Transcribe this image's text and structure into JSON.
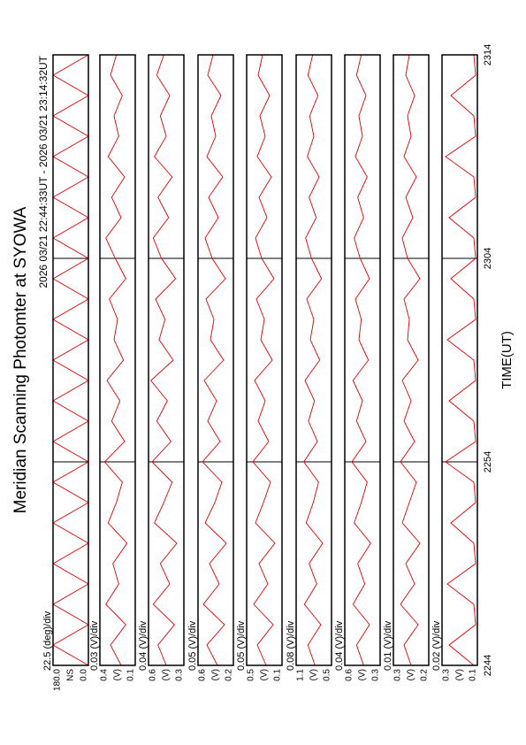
{
  "chart_data": [
    {
      "type": "line",
      "title": "Meridian Scanning Photomter at SYOWA",
      "subtitle": "2026 03/21 22:44:33UT - 2026 03/21 23:14:32UT",
      "annotation": "22.5 (deg)/div",
      "ylabel": "NS",
      "x": [
        0,
        1,
        2,
        3,
        4,
        5,
        6,
        7,
        8,
        9,
        10,
        11,
        12,
        13,
        14,
        15,
        16,
        17,
        18,
        19,
        20,
        21,
        22,
        23,
        24,
        25,
        26,
        27,
        28,
        29,
        30
      ],
      "xlim": [
        0,
        30
      ],
      "ylim": [
        0,
        180
      ],
      "yticks": [
        {
          "value": 0,
          "label": "0.0"
        },
        {
          "value": 180,
          "label": "180.0"
        }
      ],
      "series": [
        {
          "color": "#e00000",
          "values": [
            0,
            180,
            0,
            180,
            0,
            180,
            0,
            180,
            0,
            180,
            0,
            180,
            0,
            180,
            0,
            180,
            0,
            180,
            0,
            180,
            0,
            180,
            0,
            180,
            0,
            180,
            0,
            180,
            0,
            180,
            0
          ]
        }
      ]
    },
    {
      "type": "line",
      "annotation": "0.03 (V)/div",
      "ylabel": "(V)",
      "x": [
        0,
        1,
        2,
        3,
        4,
        5,
        6,
        7,
        8,
        9,
        10,
        11,
        12,
        13,
        14,
        15,
        16,
        17,
        18,
        19,
        20,
        21,
        22,
        23,
        24,
        25,
        26,
        27,
        28,
        29,
        30
      ],
      "xlim": [
        0,
        30
      ],
      "ylim": [
        0.1,
        0.4
      ],
      "yticks": [
        0.1,
        0.4
      ],
      "series": [
        {
          "color": "#e00000",
          "values": [
            0.22,
            0.31,
            0.18,
            0.35,
            0.24,
            0.29,
            0.17,
            0.33,
            0.26,
            0.21,
            0.36,
            0.19,
            0.3,
            0.23,
            0.34,
            0.2,
            0.28,
            0.25,
            0.32,
            0.18,
            0.27,
            0.35,
            0.22,
            0.3,
            0.19,
            0.33,
            0.24,
            0.28,
            0.21,
            0.31,
            0.26
          ]
        }
      ]
    },
    {
      "type": "line",
      "annotation": "0.04 (V)/div",
      "ylabel": "(V)",
      "x": [
        0,
        1,
        2,
        3,
        4,
        5,
        6,
        7,
        8,
        9,
        10,
        11,
        12,
        13,
        14,
        15,
        16,
        17,
        18,
        19,
        20,
        21,
        22,
        23,
        24,
        25,
        26,
        27,
        28,
        29,
        30
      ],
      "xlim": [
        0,
        30
      ],
      "ylim": [
        0.3,
        0.6
      ],
      "yticks": [
        0.3,
        0.6
      ],
      "series": [
        {
          "color": "#e00000",
          "values": [
            0.45,
            0.52,
            0.38,
            0.56,
            0.42,
            0.5,
            0.36,
            0.55,
            0.47,
            0.4,
            0.57,
            0.41,
            0.53,
            0.44,
            0.58,
            0.39,
            0.51,
            0.46,
            0.54,
            0.37,
            0.49,
            0.56,
            0.43,
            0.52,
            0.4,
            0.55,
            0.45,
            0.5,
            0.42,
            0.53,
            0.47
          ]
        }
      ]
    },
    {
      "type": "line",
      "annotation": "0.05 (V)/div",
      "ylabel": "(V)",
      "x": [
        0,
        1,
        2,
        3,
        4,
        5,
        6,
        7,
        8,
        9,
        10,
        11,
        12,
        13,
        14,
        15,
        16,
        17,
        18,
        19,
        20,
        21,
        22,
        23,
        24,
        25,
        26,
        27,
        28,
        29,
        30
      ],
      "xlim": [
        0,
        30
      ],
      "ylim": [
        0.2,
        0.6
      ],
      "yticks": [
        0.2,
        0.6
      ],
      "series": [
        {
          "color": "#e00000",
          "values": [
            0.38,
            0.5,
            0.3,
            0.54,
            0.36,
            0.47,
            0.28,
            0.52,
            0.41,
            0.33,
            0.55,
            0.35,
            0.49,
            0.39,
            0.53,
            0.31,
            0.46,
            0.42,
            0.51,
            0.29,
            0.44,
            0.52,
            0.37,
            0.48,
            0.32,
            0.5,
            0.4,
            0.45,
            0.34,
            0.49,
            0.43
          ]
        }
      ]
    },
    {
      "type": "line",
      "annotation": "0.05 (V)/div",
      "ylabel": "(V)",
      "x": [
        0,
        1,
        2,
        3,
        4,
        5,
        6,
        7,
        8,
        9,
        10,
        11,
        12,
        13,
        14,
        15,
        16,
        17,
        18,
        19,
        20,
        21,
        22,
        23,
        24,
        25,
        26,
        27,
        28,
        29,
        30
      ],
      "xlim": [
        0,
        30
      ],
      "ylim": [
        0.1,
        0.5
      ],
      "yticks": [
        0.1,
        0.5
      ],
      "series": [
        {
          "color": "#e00000",
          "values": [
            0.28,
            0.38,
            0.2,
            0.42,
            0.26,
            0.36,
            0.18,
            0.4,
            0.31,
            0.23,
            0.43,
            0.25,
            0.37,
            0.29,
            0.41,
            0.21,
            0.34,
            0.3,
            0.39,
            0.19,
            0.33,
            0.4,
            0.27,
            0.36,
            0.22,
            0.38,
            0.29,
            0.35,
            0.24,
            0.37,
            0.32
          ]
        }
      ]
    },
    {
      "type": "line",
      "annotation": "0.08 (V)/div",
      "ylabel": "(V)",
      "x": [
        0,
        1,
        2,
        3,
        4,
        5,
        6,
        7,
        8,
        9,
        10,
        11,
        12,
        13,
        14,
        15,
        16,
        17,
        18,
        19,
        20,
        21,
        22,
        23,
        24,
        25,
        26,
        27,
        28,
        29,
        30
      ],
      "xlim": [
        0,
        30
      ],
      "ylim": [
        0.5,
        1.1
      ],
      "yticks": [
        0.5,
        1.1
      ],
      "series": [
        {
          "color": "#e00000",
          "values": [
            0.78,
            0.9,
            0.68,
            0.96,
            0.75,
            0.88,
            0.65,
            0.93,
            0.81,
            0.72,
            0.97,
            0.74,
            0.89,
            0.79,
            0.95,
            0.7,
            0.86,
            0.8,
            0.92,
            0.67,
            0.84,
            0.94,
            0.76,
            0.88,
            0.71,
            0.91,
            0.8,
            0.87,
            0.73,
            0.9,
            0.82
          ]
        }
      ]
    },
    {
      "type": "line",
      "annotation": "0.04 (V)/div",
      "ylabel": "(V)",
      "x": [
        0,
        1,
        2,
        3,
        4,
        5,
        6,
        7,
        8,
        9,
        10,
        11,
        12,
        13,
        14,
        15,
        16,
        17,
        18,
        19,
        20,
        21,
        22,
        23,
        24,
        25,
        26,
        27,
        28,
        29,
        30
      ],
      "xlim": [
        0,
        30
      ],
      "ylim": [
        0.3,
        0.6
      ],
      "yticks": [
        0.3,
        0.6
      ],
      "series": [
        {
          "color": "#e00000",
          "values": [
            0.44,
            0.5,
            0.39,
            0.53,
            0.43,
            0.49,
            0.38,
            0.52,
            0.46,
            0.41,
            0.54,
            0.42,
            0.5,
            0.45,
            0.53,
            0.4,
            0.48,
            0.46,
            0.51,
            0.39,
            0.47,
            0.52,
            0.44,
            0.49,
            0.41,
            0.51,
            0.45,
            0.48,
            0.42,
            0.5,
            0.46
          ]
        }
      ]
    },
    {
      "type": "line",
      "annotation": "0.01 (V)/div",
      "ylabel": "(V)",
      "x": [
        0,
        1,
        2,
        3,
        4,
        5,
        6,
        7,
        8,
        9,
        10,
        11,
        12,
        13,
        14,
        15,
        16,
        17,
        18,
        19,
        20,
        21,
        22,
        23,
        24,
        25,
        26,
        27,
        28,
        29,
        30
      ],
      "xlim": [
        0,
        30
      ],
      "ylim": [
        0.2,
        0.3
      ],
      "yticks": [
        0.2,
        0.3
      ],
      "series": [
        {
          "color": "#e00000",
          "values": [
            0.25,
            0.27,
            0.23,
            0.28,
            0.24,
            0.265,
            0.225,
            0.275,
            0.255,
            0.235,
            0.28,
            0.24,
            0.27,
            0.25,
            0.275,
            0.23,
            0.26,
            0.255,
            0.27,
            0.225,
            0.26,
            0.275,
            0.245,
            0.265,
            0.235,
            0.27,
            0.25,
            0.26,
            0.24,
            0.265,
            0.255
          ]
        }
      ]
    },
    {
      "type": "line",
      "annotation": "0.02 (V)/div",
      "ylabel": "(V)",
      "xlabel": "TIME(UT)",
      "x": [
        0,
        1,
        2,
        3,
        4,
        5,
        6,
        7,
        8,
        9,
        10,
        11,
        12,
        13,
        14,
        15,
        16,
        17,
        18,
        19,
        20,
        21,
        22,
        23,
        24,
        25,
        26,
        27,
        28,
        29,
        30
      ],
      "xlim": [
        0,
        30
      ],
      "xticks": [
        {
          "value": 0,
          "label": "2244"
        },
        {
          "value": 10,
          "label": "2254"
        },
        {
          "value": 20,
          "label": "2304"
        },
        {
          "value": 30,
          "label": "2314"
        }
      ],
      "ylim": [
        0.1,
        0.3
      ],
      "yticks": [
        0.1,
        0.3
      ],
      "series": [
        {
          "color": "#e00000",
          "values": [
            0.12,
            0.26,
            0.11,
            0.12,
            0.27,
            0.11,
            0.12,
            0.25,
            0.11,
            0.12,
            0.28,
            0.11,
            0.12,
            0.26,
            0.11,
            0.12,
            0.27,
            0.11,
            0.12,
            0.25,
            0.11,
            0.12,
            0.26,
            0.11,
            0.12,
            0.28,
            0.11,
            0.12,
            0.25,
            0.11,
            0.12
          ]
        }
      ]
    }
  ]
}
